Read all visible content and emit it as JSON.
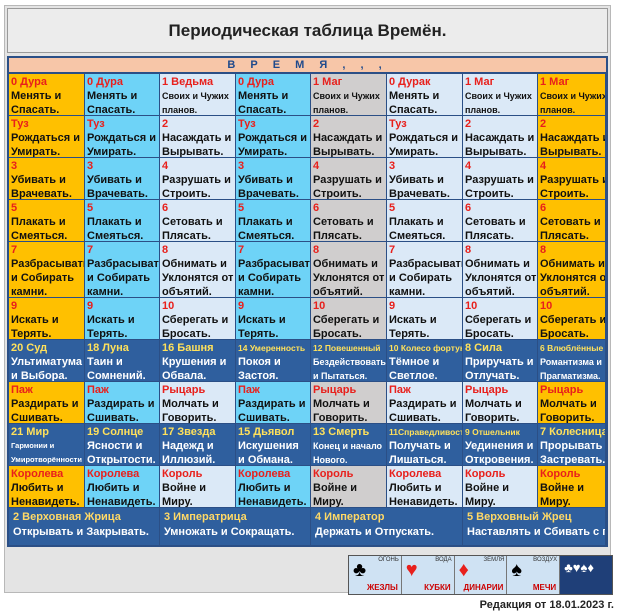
{
  "title": "Периодическая таблица Времён.",
  "banner": "В Р Е М Я , , ,",
  "colors": {
    "gold": "#ffc000",
    "sky": "#6ed3f7",
    "pale": "#dbe9f7",
    "grey": "#d0cece",
    "navy": "#2f5f9e",
    "red": "#e8201c",
    "yellow": "#ffe15b"
  },
  "cols": [
    {
      "bg": "#ffc000",
      "tc": "#e8201c"
    },
    {
      "bg": "#6ed3f7",
      "tc": "#e8201c"
    },
    {
      "bg": "#dbe9f7",
      "tc": "#e8201c"
    },
    {
      "bg": "#6ed3f7",
      "tc": "#e8201c"
    },
    {
      "bg": "#d0cece",
      "tc": "#e8201c"
    },
    {
      "bg": "#dbe9f7",
      "tc": "#e8201c"
    },
    {
      "bg": "#dbe9f7",
      "tc": "#e8201c"
    },
    {
      "bg": "#ffc000",
      "tc": "#e8201c"
    }
  ],
  "rows": [
    {
      "lines": 2,
      "cells": [
        {
          "t": "0 Дура",
          "b": "Менять и\nСпасать."
        },
        {
          "t": "0 Дура",
          "b": "Менять и\nСпасать."
        },
        {
          "t": "1 Ведьма",
          "b": "Своих и Чужих\nпланов.",
          "bs": "sm"
        },
        {
          "t": "0 Дура",
          "b": "Менять и\nСпасать."
        },
        {
          "t": "1 Маг",
          "b": "Своих и Чужих\nпланов.",
          "bs": "sm"
        },
        {
          "t": "0 Дурак",
          "b": "Менять и\nСпасать."
        },
        {
          "t": "1 Маг",
          "b": "Своих и Чужих\nпланов.",
          "bs": "sm"
        },
        {
          "t": "1 Маг",
          "b": "Своих и Чужих\nпланов.",
          "bs": "sm"
        }
      ]
    },
    {
      "lines": 2,
      "cells": [
        {
          "t": "Туз",
          "b": "Рождаться и\nУмирать."
        },
        {
          "t": "Туз",
          "b": "Рождаться и\nУмирать."
        },
        {
          "t": "2",
          "b": "Насаждать и\nВырывать."
        },
        {
          "t": "Туз",
          "b": "Рождаться и\nУмирать."
        },
        {
          "t": "2",
          "b": "Насаждать и\nВырывать."
        },
        {
          "t": "Туз",
          "b": "Рождаться и\nУмирать."
        },
        {
          "t": "2",
          "b": "Насаждать и\nВырывать."
        },
        {
          "t": "2",
          "b": "Насаждать и\nВырывать."
        }
      ]
    },
    {
      "lines": 2,
      "cells": [
        {
          "t": "3",
          "b": "Убивать и\nВрачевать."
        },
        {
          "t": "3",
          "b": "Убивать и\nВрачевать."
        },
        {
          "t": "4",
          "b": "Разрушать и\nСтроить."
        },
        {
          "t": "3",
          "b": "Убивать и\nВрачевать."
        },
        {
          "t": "4",
          "b": "Разрушать и\nСтроить."
        },
        {
          "t": "3",
          "b": "Убивать и\nВрачевать."
        },
        {
          "t": "4",
          "b": "Разрушать и\nСтроить."
        },
        {
          "t": "4",
          "b": "Разрушать и\nСтроить."
        }
      ]
    },
    {
      "lines": 2,
      "cells": [
        {
          "t": "5",
          "b": "Плакать и\nСмеяться."
        },
        {
          "t": "5",
          "b": "Плакать и\nСмеяться."
        },
        {
          "t": "6",
          "b": "Сетовать и\nПлясать."
        },
        {
          "t": "5",
          "b": "Плакать и\nСмеяться."
        },
        {
          "t": "6",
          "b": "Сетовать и\nПлясать."
        },
        {
          "t": "5",
          "b": "Плакать и\nСмеяться."
        },
        {
          "t": "6",
          "b": "Сетовать и\nПлясать."
        },
        {
          "t": "6",
          "b": "Сетовать и\nПлясать."
        }
      ]
    },
    {
      "lines": 3,
      "cells": [
        {
          "t": "7",
          "b": "Разбрасывать\nи Собирать\nкамни."
        },
        {
          "t": "7",
          "b": "Разбрасывать\nи Собирать\nкамни."
        },
        {
          "t": "8",
          "b": "Обнимать и\nУклонятся от\nобъятий."
        },
        {
          "t": "7",
          "b": "Разбрасывать\nи Собирать\nкамни."
        },
        {
          "t": "8",
          "b": "Обнимать и\nУклонятся от\nобъятий."
        },
        {
          "t": "7",
          "b": "Разбрасывать\nи Собирать\nкамни."
        },
        {
          "t": "8",
          "b": "Обнимать и\nУклонятся от\nобъятий."
        },
        {
          "t": "8",
          "b": "Обнимать и\nУклонятся от\nобъятий."
        }
      ]
    },
    {
      "lines": 2,
      "cells": [
        {
          "t": "9",
          "b": "Искать и\nТерять."
        },
        {
          "t": "9",
          "b": "Искать и\nТерять."
        },
        {
          "t": "10",
          "b": "Сберегать и\nБросать."
        },
        {
          "t": "9",
          "b": "Искать и\nТерять."
        },
        {
          "t": "10",
          "b": "Сберегать и\nБросать."
        },
        {
          "t": "9",
          "b": "Искать и\nТерять."
        },
        {
          "t": "10",
          "b": "Сберегать и\nБросать."
        },
        {
          "t": "10",
          "b": "Сберегать и\nБросать."
        }
      ]
    },
    {
      "lines": 2,
      "dark": true,
      "cells": [
        {
          "t": "20 Суд",
          "b": "Ультиматума\nи Выбора."
        },
        {
          "t": "18 Луна",
          "b": "Таин и\nСомнений."
        },
        {
          "t": "16 Башня",
          "b": "Крушения и\nОбвала."
        },
        {
          "t": "14 Умеренность",
          "ts": "sm",
          "b": "Покоя и\nЗастоя."
        },
        {
          "t": "12 Повешенный",
          "ts": "sm",
          "b": "Бездействовать\nи Пытаться.",
          "bs": "sm"
        },
        {
          "t": "10 Колесо фортуны",
          "ts": "sm",
          "b": "Тёмное и\nСветлое."
        },
        {
          "t": "8 Сила",
          "b": "Приручать и\nОтлучать."
        },
        {
          "t": "6 Влюблённые",
          "ts": "sm",
          "b": "Романтизма и\nПрагматизма.",
          "bs": "sm"
        }
      ]
    },
    {
      "lines": 2,
      "cells": [
        {
          "t": "Паж",
          "b": "Раздирать и\nСшивать."
        },
        {
          "t": "Паж",
          "b": "Раздирать и\nСшивать."
        },
        {
          "t": "Рыцарь",
          "b": "Молчать и\nГоворить."
        },
        {
          "t": "Паж",
          "b": "Раздирать и\nСшивать."
        },
        {
          "t": "Рыцарь",
          "b": "Молчать и\nГоворить."
        },
        {
          "t": "Паж",
          "b": "Раздирать и\nСшивать."
        },
        {
          "t": "Рыцарь",
          "b": "Молчать и\nГоворить."
        },
        {
          "t": "Рыцарь",
          "b": "Молчать и\nГоворить."
        }
      ]
    },
    {
      "lines": 2,
      "dark": true,
      "cells": [
        {
          "t": "21 Мир",
          "b": "Гармонии и\nУмиротворённости",
          "bs": "xs"
        },
        {
          "t": "19 Солнце",
          "b": "Ясности и\nОткрытости."
        },
        {
          "t": "17 Звезда",
          "b": "Надежд и\nИллюзий."
        },
        {
          "t": "15 Дьявол",
          "b": "Искушения\nи Обмана."
        },
        {
          "t": "13 Смерть",
          "b": "Конец и начало\nНового.",
          "bs": "sm"
        },
        {
          "t": "11Справедливость",
          "ts": "sm",
          "b": "Получать и\nЛишаться."
        },
        {
          "t": "9 Отшельник",
          "ts": "sm",
          "b": "Уединения и\nОткровения."
        },
        {
          "t": "7 Колесница",
          "b": "Прорывать и\nЗастревать."
        }
      ]
    },
    {
      "lines": 2,
      "cells": [
        {
          "t": "Королева",
          "b": "Любить и\nНенавидеть."
        },
        {
          "t": "Королева",
          "b": "Любить и\nНенавидеть."
        },
        {
          "t": "Король",
          "b": "Войне и\nМиру."
        },
        {
          "t": "Королева",
          "b": "Любить и\nНенавидеть."
        },
        {
          "t": "Король",
          "b": "Войне и\nМиру."
        },
        {
          "t": "Королева",
          "b": "Любить и\nНенавидеть."
        },
        {
          "t": "Король",
          "b": "Войне и\nМиру."
        },
        {
          "t": "Король",
          "b": "Войне и\nМиру."
        }
      ]
    }
  ],
  "wide": [
    {
      "t": "2 Верховная Жрица",
      "b": "Открывать и Закрывать."
    },
    {
      "t": "3 Императрица",
      "b": "Умножать и Сокращать."
    },
    {
      "t": "4 Император",
      "b": "Держать и Отпускать."
    },
    {
      "t": "5 Верховный Жрец",
      "b": "Наставлять и Сбивать с пути."
    }
  ],
  "suits": [
    {
      "el": "ОГОНЬ",
      "nm": "ЖЕЗЛЫ",
      "icon": "♣",
      "icon_color": "#000"
    },
    {
      "el": "ВОДА",
      "nm": "КУБКИ",
      "icon": "♥",
      "icon_color": "#e8201c"
    },
    {
      "el": "ЗЕМЛЯ",
      "nm": "ДИНАРИИ",
      "icon": "♦",
      "icon_color": "#e8201c"
    },
    {
      "el": "ВОЗДУХ",
      "nm": "МЕЧИ",
      "icon": "♠",
      "icon_color": "#000"
    },
    {
      "el": "",
      "nm": "",
      "icon": "♣♥♠♦",
      "icon_color": "#fff"
    }
  ],
  "edition": "Редакция от 18.01.2023 г."
}
